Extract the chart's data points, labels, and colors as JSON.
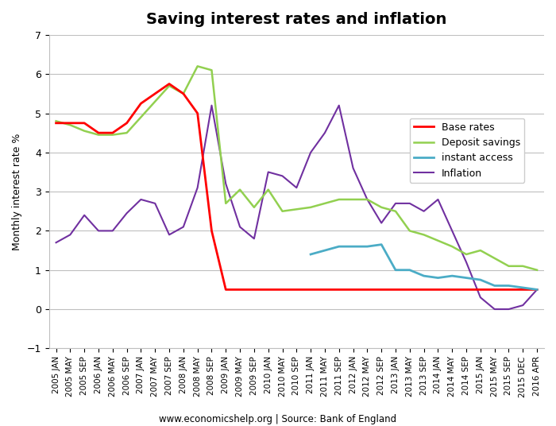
{
  "title": "Saving interest rates and inflation",
  "ylabel": "Monthly interest rate %",
  "footnote": "www.economicshelp.org | Source: Bank of England",
  "ylim": [
    -1,
    7
  ],
  "yticks": [
    -1,
    0,
    1,
    2,
    3,
    4,
    5,
    6,
    7
  ],
  "colors": {
    "instant_access": "#4BACC6",
    "base_rates": "#FF0000",
    "deposit_savings": "#92D050",
    "inflation": "#7030A0"
  },
  "legend_labels": [
    "instant access",
    "Base rates",
    "Deposit savings",
    "Inflation"
  ],
  "xtick_labels": [
    "2005 JAN",
    "2005 MAY",
    "2005 SEP",
    "2006 JAN",
    "2006 MAY",
    "2006 SEP",
    "2007 JAN",
    "2007 MAY",
    "2007 SEP",
    "2008 JAN",
    "2008 MAY",
    "2008 SEP",
    "2009 JAN",
    "2009 MAY",
    "2009 SEP",
    "2010 JAN",
    "2010 MAY",
    "2010 SEP",
    "2011 JAN",
    "2011 MAY",
    "2011 SEP",
    "2012 JAN",
    "2012 MAY",
    "2012 SEP",
    "2013 JAN",
    "2013 MAY",
    "2013 SEP",
    "2014 JAN",
    "2014 MAY",
    "2014 SEP",
    "2015 JAN",
    "2015 MAY",
    "2015 SEP",
    "2015 DEC",
    "2016 APR"
  ],
  "base_rates": {
    "x": [
      0,
      1,
      2,
      3,
      4,
      5,
      6,
      7,
      8,
      9,
      10,
      11,
      12,
      13,
      14,
      15,
      16,
      17,
      18,
      19,
      20,
      21,
      22,
      23,
      24,
      25,
      26,
      27,
      28,
      29,
      30,
      31,
      32,
      33,
      34
    ],
    "y": [
      4.75,
      4.75,
      4.75,
      4.5,
      4.5,
      4.75,
      5.25,
      5.5,
      5.75,
      5.5,
      5.0,
      2.0,
      0.5,
      0.5,
      0.5,
      0.5,
      0.5,
      0.5,
      0.5,
      0.5,
      0.5,
      0.5,
      0.5,
      0.5,
      0.5,
      0.5,
      0.5,
      0.5,
      0.5,
      0.5,
      0.5,
      0.5,
      0.5,
      0.5,
      0.5
    ]
  },
  "deposit_savings": {
    "x": [
      0,
      1,
      2,
      3,
      4,
      5,
      6,
      7,
      8,
      9,
      10,
      11,
      12,
      13,
      14,
      15,
      16,
      17,
      18,
      19,
      20,
      21,
      22,
      23,
      24,
      25,
      26,
      27,
      28,
      29,
      30,
      31,
      32,
      33,
      34
    ],
    "y": [
      4.8,
      4.7,
      4.55,
      4.45,
      4.45,
      4.5,
      4.9,
      5.3,
      5.7,
      5.5,
      6.2,
      6.1,
      2.7,
      3.05,
      2.6,
      3.05,
      2.5,
      2.55,
      2.6,
      2.7,
      2.8,
      2.8,
      2.8,
      2.6,
      2.5,
      2.0,
      1.9,
      1.75,
      1.6,
      1.4,
      1.5,
      1.3,
      1.1,
      1.1,
      1.0
    ]
  },
  "instant_access": {
    "x": [
      18,
      19,
      20,
      21,
      22,
      23,
      24,
      25,
      26,
      27,
      28,
      29,
      30,
      31,
      32,
      33,
      34
    ],
    "y": [
      1.4,
      1.5,
      1.6,
      1.6,
      1.6,
      1.65,
      1.0,
      1.0,
      0.85,
      0.8,
      0.85,
      0.8,
      0.75,
      0.6,
      0.6,
      0.55,
      0.5
    ]
  },
  "inflation": {
    "x": [
      0,
      1,
      2,
      3,
      4,
      5,
      6,
      7,
      8,
      9,
      10,
      11,
      12,
      13,
      14,
      15,
      16,
      17,
      18,
      19,
      20,
      21,
      22,
      23,
      24,
      25,
      26,
      27,
      28,
      29,
      30,
      31,
      32,
      33,
      34
    ],
    "y": [
      1.7,
      1.9,
      2.4,
      2.0,
      2.0,
      2.45,
      2.8,
      2.7,
      1.9,
      2.1,
      3.1,
      5.2,
      3.2,
      2.1,
      1.8,
      3.5,
      3.4,
      3.1,
      4.0,
      4.5,
      5.2,
      3.6,
      2.8,
      2.2,
      2.7,
      2.7,
      2.5,
      2.8,
      2.0,
      1.2,
      0.3,
      0.0,
      0.0,
      0.1,
      0.5
    ]
  }
}
